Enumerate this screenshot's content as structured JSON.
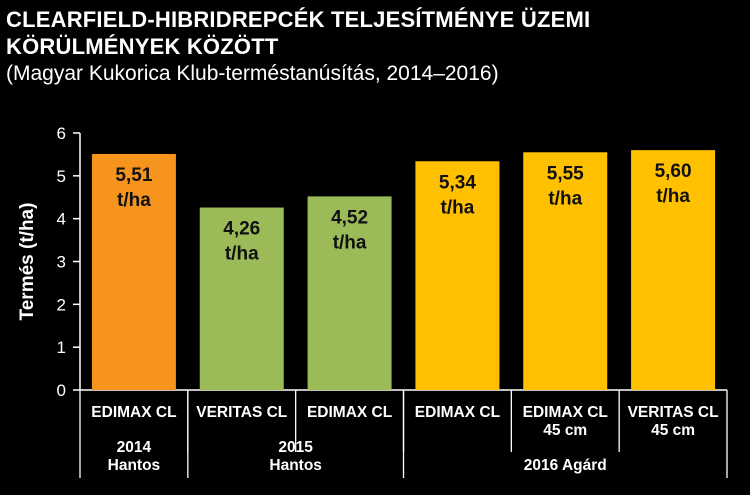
{
  "chart_data": {
    "type": "bar",
    "title": [
      "CLEARFIELD-HIBRIDREPCÉK TELJESÍTMÉNYE ÜZEMI",
      "KÖRÜLMÉNYEK KÖZÖTT"
    ],
    "subtitle": "(Magyar Kukorica Klub-terméstanúsítás, 2014–2016)",
    "ylabel": "Termés (t/ha)",
    "ylim": [
      0,
      6
    ],
    "yticks": [
      0,
      1,
      2,
      3,
      4,
      5,
      6
    ],
    "grid": false,
    "unit": "t/ha",
    "categories": [
      {
        "label": [
          "EDIMAX CL"
        ],
        "value": 5.51,
        "value_label": "5,51",
        "color": "#f7941d"
      },
      {
        "label": [
          "VERITAS CL"
        ],
        "value": 4.26,
        "value_label": "4,26",
        "color": "#9bbb59"
      },
      {
        "label": [
          "EDIMAX CL"
        ],
        "value": 4.52,
        "value_label": "4,52",
        "color": "#9bbb59"
      },
      {
        "label": [
          "EDIMAX CL"
        ],
        "value": 5.34,
        "value_label": "5,34",
        "color": "#ffc000"
      },
      {
        "label": [
          "EDIMAX CL",
          "45 cm"
        ],
        "value": 5.55,
        "value_label": "5,55",
        "color": "#ffc000"
      },
      {
        "label": [
          "VERITAS CL",
          "45 cm"
        ],
        "value": 5.6,
        "value_label": "5,60",
        "color": "#ffc000"
      }
    ],
    "groups": [
      {
        "label": [
          "2014",
          "Hantos"
        ],
        "members": [
          0
        ]
      },
      {
        "label": [
          "2015",
          "Hantos"
        ],
        "members": [
          1,
          2
        ]
      },
      {
        "label": [
          "2016 Agárd"
        ],
        "members": [
          3,
          4,
          5
        ]
      }
    ]
  }
}
